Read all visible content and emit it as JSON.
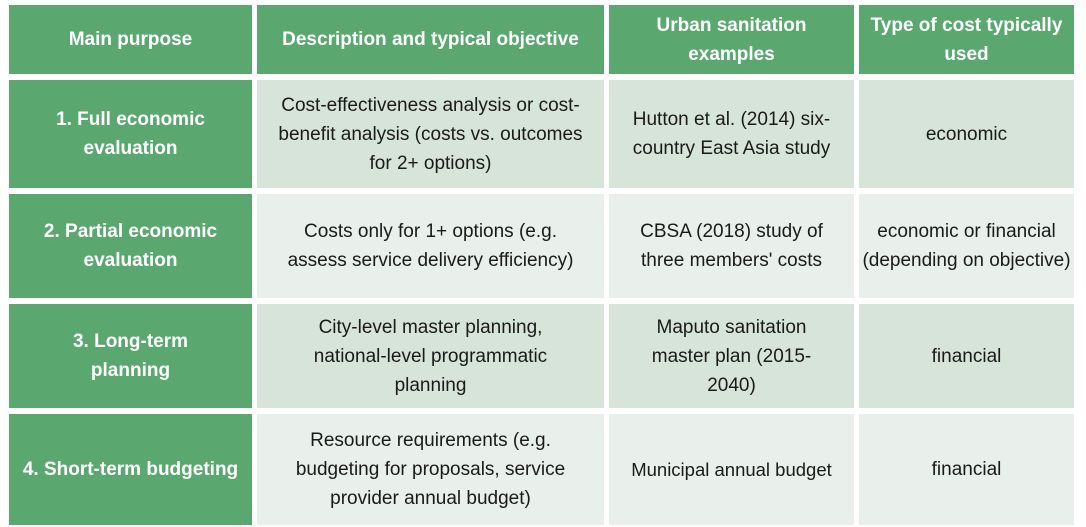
{
  "table": {
    "headers": [
      "Main purpose",
      "Description and typical objective",
      "Urban sanitation examples",
      "Type of cost typically used"
    ],
    "rows": [
      [
        "1. Full economic evaluation",
        "Cost-effectiveness analysis or cost-benefit analysis (costs vs. outcomes for 2+ options)",
        "Hutton et al. (2014) six-country East Asia study",
        "economic"
      ],
      [
        "2. Partial economic evaluation",
        "Costs only for 1+ options (e.g. assess service delivery efficiency)",
        "CBSA (2018) study of three members' costs",
        "economic or financial (depending on objective)"
      ],
      [
        "3. Long-term planning",
        "City-level master planning, national-level programmatic planning",
        "Maputo sanitation master plan (2015-2040)",
        "financial"
      ],
      [
        "4. Short-term budgeting",
        "Resource requirements (e.g. budgeting for proposals, service provider annual budget)",
        "Municipal annual budget",
        "financial"
      ]
    ]
  },
  "colors": {
    "header": "#5aa86f",
    "row_odd": "#d6e4d9",
    "row_even": "#e9efea"
  }
}
